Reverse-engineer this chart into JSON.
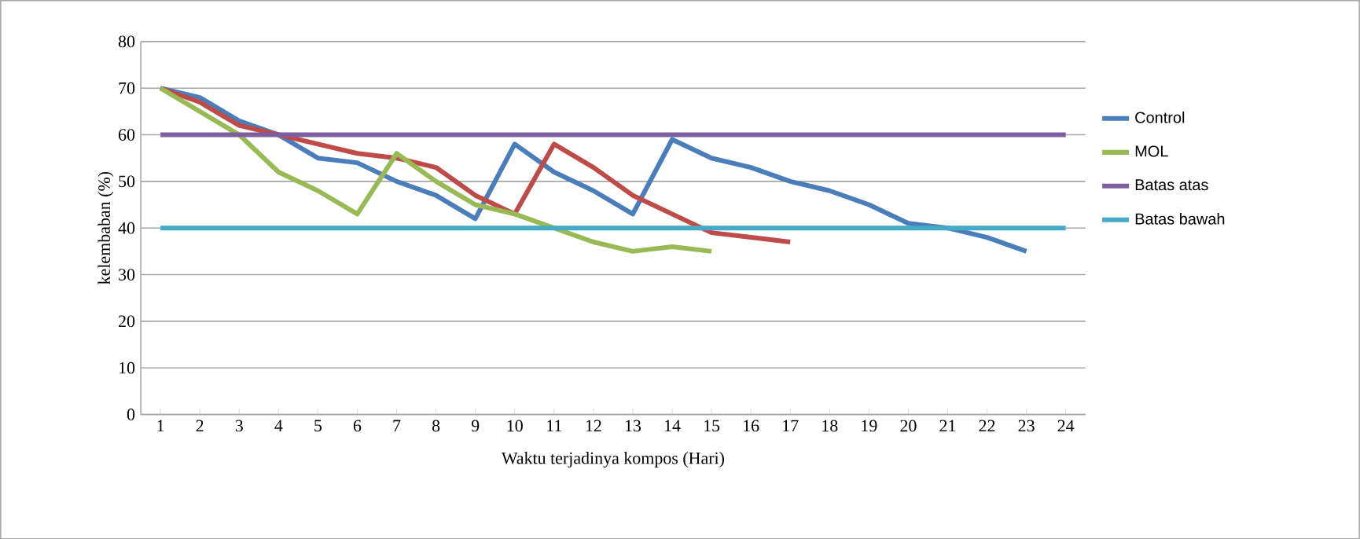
{
  "chart_data": {
    "type": "line",
    "xlabel": "Waktu terjadinya kompos (Hari)",
    "ylabel": "kelembaban (%)",
    "categories": [
      "1",
      "2",
      "3",
      "4",
      "5",
      "6",
      "7",
      "8",
      "9",
      "10",
      "11",
      "12",
      "13",
      "14",
      "15",
      "16",
      "17",
      "18",
      "19",
      "20",
      "21",
      "22",
      "23",
      "24"
    ],
    "series": [
      {
        "name": "Control",
        "color": "#4a7ebb",
        "values": [
          70,
          68,
          63,
          60,
          55,
          54,
          50,
          47,
          42,
          58,
          52,
          48,
          43,
          59,
          55,
          53,
          50,
          48,
          45,
          41,
          40,
          38,
          35,
          null
        ]
      },
      {
        "color": "#be4b48",
        "values": [
          70,
          67,
          62,
          60,
          58,
          56,
          55,
          53,
          47,
          43,
          58,
          53,
          47,
          43,
          39,
          38,
          37,
          null,
          null,
          null,
          null,
          null,
          null,
          null
        ]
      },
      {
        "name": "MOL",
        "color": "#98b954",
        "values": [
          70,
          65,
          60,
          52,
          48,
          43,
          56,
          50,
          45,
          43,
          40,
          37,
          35,
          36,
          35,
          null,
          null,
          null,
          null,
          null,
          null,
          null,
          null,
          null
        ]
      },
      {
        "name": "Batas atas",
        "color": "#7d5fa0",
        "values": [
          60,
          60,
          60,
          60,
          60,
          60,
          60,
          60,
          60,
          60,
          60,
          60,
          60,
          60,
          60,
          60,
          60,
          60,
          60,
          60,
          60,
          60,
          60,
          60
        ]
      },
      {
        "name": "Batas bawah",
        "color": "#46aac5",
        "values": [
          40,
          40,
          40,
          40,
          40,
          40,
          40,
          40,
          40,
          40,
          40,
          40,
          40,
          40,
          40,
          40,
          40,
          40,
          40,
          40,
          40,
          40,
          40,
          40
        ]
      }
    ],
    "ylim": [
      0,
      80
    ],
    "yticks": [
      0,
      10,
      20,
      30,
      40,
      50,
      60,
      70,
      80
    ],
    "grid": "y",
    "legend": "right",
    "marker": "none",
    "line_style": "solid"
  }
}
